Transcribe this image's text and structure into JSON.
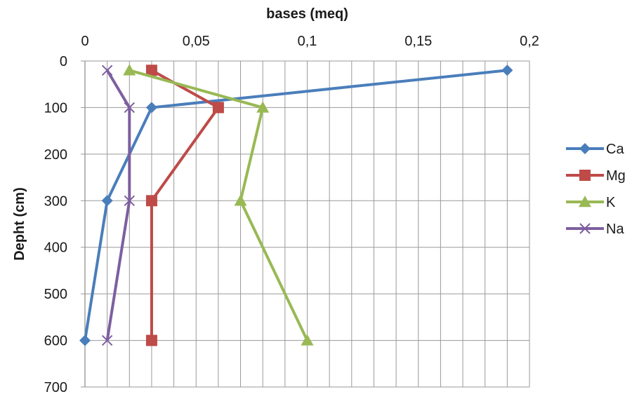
{
  "chart_data": {
    "type": "line",
    "xlabel": "bases (meq)",
    "ylabel": "Depht (cm)",
    "xlim": [
      0,
      0.2
    ],
    "ylim": [
      0,
      700
    ],
    "y_inverted": true,
    "x_axis_position": "top",
    "grid": {
      "vertical_minor_step": 0.01,
      "horizontal_major_step": 100
    },
    "x_ticks": [
      {
        "value": 0,
        "label": "0"
      },
      {
        "value": 0.05,
        "label": "0,05"
      },
      {
        "value": 0.1,
        "label": "0,1"
      },
      {
        "value": 0.15,
        "label": "0,15"
      },
      {
        "value": 0.2,
        "label": "0,2"
      }
    ],
    "y_ticks": [
      {
        "value": 0,
        "label": "0"
      },
      {
        "value": 100,
        "label": "100"
      },
      {
        "value": 200,
        "label": "200"
      },
      {
        "value": 300,
        "label": "300"
      },
      {
        "value": 400,
        "label": "400"
      },
      {
        "value": 500,
        "label": "500"
      },
      {
        "value": 600,
        "label": "600"
      },
      {
        "value": 700,
        "label": "700"
      }
    ],
    "legend_position": "right",
    "series": [
      {
        "name": "Ca",
        "color": "#4a7ebb",
        "marker": "diamond",
        "points": [
          {
            "x": 0.19,
            "y": 20
          },
          {
            "x": 0.03,
            "y": 100
          },
          {
            "x": 0.01,
            "y": 300
          },
          {
            "x": 0.0,
            "y": 600
          }
        ]
      },
      {
        "name": "Mg",
        "color": "#be4b48",
        "marker": "square",
        "points": [
          {
            "x": 0.03,
            "y": 20
          },
          {
            "x": 0.06,
            "y": 100
          },
          {
            "x": 0.03,
            "y": 300
          },
          {
            "x": 0.03,
            "y": 600
          }
        ]
      },
      {
        "name": "K",
        "color": "#98b954",
        "marker": "triangle",
        "points": [
          {
            "x": 0.02,
            "y": 20
          },
          {
            "x": 0.08,
            "y": 100
          },
          {
            "x": 0.07,
            "y": 300
          },
          {
            "x": 0.1,
            "y": 600
          }
        ]
      },
      {
        "name": "Na",
        "color": "#7d5fa0",
        "marker": "x",
        "points": [
          {
            "x": 0.01,
            "y": 20
          },
          {
            "x": 0.02,
            "y": 100
          },
          {
            "x": 0.02,
            "y": 300
          },
          {
            "x": 0.01,
            "y": 600
          }
        ]
      }
    ]
  }
}
